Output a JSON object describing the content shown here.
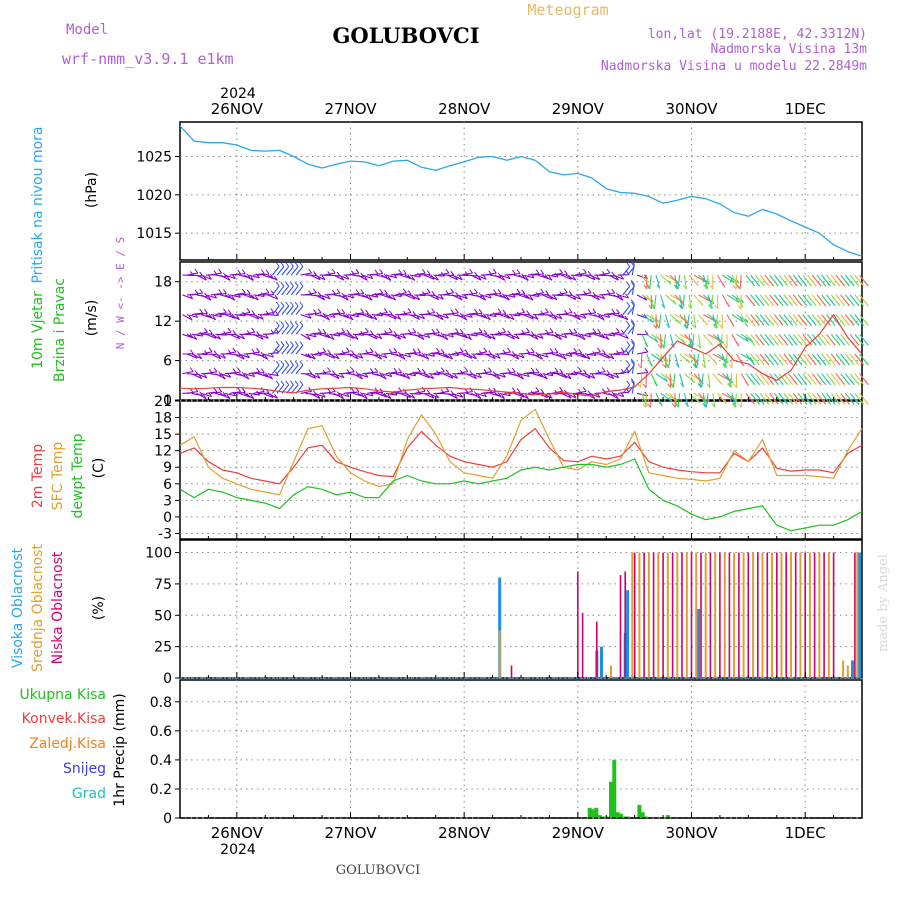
{
  "header": {
    "model_label": "Model",
    "model_name": "wrf-nmm_v3.9.1 e1km",
    "station": "GOLUBOVCI",
    "product": "Meteogram",
    "lonlat": "lon,lat (19.2188E, 42.3312N)",
    "elevation": "Nadmorska Visina 13m",
    "model_elevation": "Nadmorska Visina u modelu 22.2849m",
    "year": "2024",
    "footer_station": "GOLUBOVCI",
    "credit": "made by Angel"
  },
  "colors": {
    "pressure": "#2aa8e8",
    "wind_barb": "#8800cc",
    "temp2m": "#e84040",
    "sfc_temp": "#e0a030",
    "dewpoint": "#20c020",
    "cloud_high": "#1e90e0",
    "cloud_mid": "#e0a030",
    "cloud_low": "#cc0077",
    "precip_total": "#20c020",
    "precip_conv": "#e84040",
    "precip_frozen": "#f08020",
    "precip_snow": "#4040e0",
    "precip_graupel": "#20c0c0"
  },
  "chart_data": [
    {
      "type": "line",
      "panel": "pressure",
      "ylabel": "Pritisak na nivou mora",
      "unit": "(hPa)",
      "yticks": [
        1015,
        1020,
        1025
      ],
      "ylim": [
        1011.5,
        1029.5
      ],
      "x_day_labels": [
        "26NOV",
        "27NOV",
        "28NOV",
        "29NOV",
        "30NOV",
        "1DEC"
      ],
      "x_hours": [
        0,
        3,
        6,
        9,
        12,
        15,
        18,
        21,
        24,
        27,
        30,
        33,
        36,
        39,
        42,
        45,
        48,
        51,
        54,
        57,
        60,
        63,
        66,
        69,
        72,
        75,
        78,
        81,
        84,
        87,
        90,
        93,
        96,
        99,
        102,
        105,
        108,
        111,
        114,
        117,
        120,
        123,
        126,
        129,
        132,
        135,
        138,
        141,
        144
      ],
      "series": [
        {
          "values": [
            1029.0,
            1027.0,
            1026.8,
            1026.8,
            1026.5,
            1025.8,
            1025.7,
            1025.8,
            1025.0,
            1024.0,
            1023.5,
            1024.0,
            1024.4,
            1024.3,
            1023.8,
            1024.4,
            1024.5,
            1023.6,
            1023.2,
            1023.8,
            1024.3,
            1024.9,
            1025.0,
            1024.5,
            1025.0,
            1024.5,
            1023.0,
            1022.6,
            1022.8,
            1022.2,
            1020.8,
            1020.3,
            1020.2,
            1019.8,
            1018.9,
            1019.3,
            1019.8,
            1019.5,
            1018.8,
            1017.7,
            1017.2,
            1018.1,
            1017.5,
            1016.6,
            1015.8,
            1015.0,
            1013.5,
            1012.6,
            1012.0
          ]
        }
      ]
    },
    {
      "type": "line",
      "panel": "wind",
      "ylabel": "10m Vjetar Brzina i Pravac",
      "unit": "(m/s)",
      "compass": "N / W <- -> E / S",
      "yticks": [
        0,
        6,
        12,
        18
      ],
      "ylim": [
        0,
        21
      ],
      "x_hours": [
        0,
        3,
        6,
        9,
        12,
        15,
        18,
        21,
        24,
        27,
        30,
        33,
        36,
        39,
        42,
        45,
        48,
        51,
        54,
        57,
        60,
        63,
        66,
        69,
        72,
        75,
        78,
        81,
        84,
        87,
        90,
        93,
        96,
        99,
        102,
        105,
        108,
        111,
        114,
        117,
        120,
        123,
        126,
        129,
        132,
        135,
        138,
        141,
        144
      ],
      "series": [
        {
          "name": "wind speed",
          "values": [
            1.8,
            1.7,
            1.8,
            1.9,
            1.9,
            1.8,
            1.6,
            1.3,
            1.1,
            1.5,
            1.7,
            1.8,
            1.9,
            1.7,
            1.4,
            1.2,
            1.5,
            1.7,
            1.8,
            1.9,
            1.7,
            1.6,
            1.4,
            1.2,
            1.0,
            0.8,
            0.9,
            1.2,
            0.8,
            0.6,
            1.3,
            1.5,
            2.0,
            4.0,
            6.5,
            9.0,
            8.0,
            7.0,
            8.5,
            6.0,
            5.5,
            4.0,
            3.0,
            4.5,
            8.0,
            10.0,
            13.0,
            9.5,
            7.0
          ]
        }
      ]
    },
    {
      "type": "line",
      "panel": "temperature",
      "ylabels": [
        "2m Temp",
        "SFC Temp",
        "dewpt Temp"
      ],
      "unit": "(C)",
      "yticks": [
        -3,
        0,
        3,
        6,
        9,
        12,
        15,
        18,
        21
      ],
      "ylim": [
        -4,
        21
      ],
      "x_hours": [
        0,
        3,
        6,
        9,
        12,
        15,
        18,
        21,
        24,
        27,
        30,
        33,
        36,
        39,
        42,
        45,
        48,
        51,
        54,
        57,
        60,
        63,
        66,
        69,
        72,
        75,
        78,
        81,
        84,
        87,
        90,
        93,
        96,
        99,
        102,
        105,
        108,
        111,
        114,
        117,
        120,
        123,
        126,
        129,
        132,
        135,
        138,
        141,
        144
      ],
      "series": [
        {
          "name": "2m Temp",
          "values": [
            11.5,
            12.5,
            10.0,
            8.5,
            8.0,
            7.0,
            6.5,
            6.0,
            9.0,
            12.5,
            13.0,
            10.0,
            9.0,
            8.2,
            7.5,
            7.3,
            12.5,
            15.5,
            13.0,
            11.0,
            10.0,
            9.5,
            9.0,
            10.0,
            14.0,
            16.0,
            12.5,
            10.2,
            10.0,
            11.0,
            10.5,
            11.0,
            13.5,
            10.0,
            9.0,
            8.5,
            8.2,
            8.0,
            8.0,
            11.5,
            10.0,
            12.5,
            8.8,
            8.3,
            8.5,
            8.5,
            8.0,
            11.5,
            13.0
          ]
        },
        {
          "name": "SFC Temp",
          "values": [
            13.0,
            14.5,
            9.0,
            7.0,
            6.0,
            5.0,
            4.5,
            4.0,
            10.0,
            16.0,
            16.5,
            11.0,
            8.0,
            6.5,
            5.5,
            6.0,
            14.0,
            18.5,
            15.0,
            10.0,
            8.0,
            7.5,
            7.0,
            11.0,
            17.5,
            19.5,
            14.0,
            9.0,
            8.5,
            10.0,
            9.5,
            10.5,
            15.5,
            8.0,
            7.5,
            7.0,
            6.8,
            6.5,
            7.0,
            12.0,
            10.0,
            14.0,
            7.5,
            7.5,
            7.5,
            7.3,
            7.0,
            12.0,
            16.0
          ]
        },
        {
          "name": "dewpt Temp",
          "values": [
            5.0,
            3.5,
            5.0,
            4.5,
            3.5,
            3.0,
            2.5,
            1.5,
            4.0,
            5.5,
            5.0,
            4.0,
            4.5,
            3.5,
            3.5,
            6.5,
            7.5,
            6.5,
            6.0,
            6.0,
            6.5,
            6.0,
            6.5,
            7.0,
            8.5,
            9.0,
            8.5,
            9.0,
            9.5,
            9.5,
            9.0,
            9.5,
            10.5,
            5.0,
            3.0,
            2.0,
            0.5,
            -0.5,
            0.0,
            1.0,
            1.5,
            2.0,
            -1.5,
            -2.5,
            -2.0,
            -1.5,
            -1.5,
            -0.5,
            1.0
          ]
        }
      ]
    },
    {
      "type": "bar",
      "panel": "clouds",
      "ylabels": [
        "Visoka Oblacnost",
        "Srednja Oblacnost",
        "Niska Oblacnost"
      ],
      "unit": "(%)",
      "yticks": [
        0,
        25,
        50,
        75,
        100
      ],
      "ylim": [
        0,
        110
      ],
      "series": [
        {
          "name": "Visoka Oblacnost",
          "x": [
            67.5,
            88.0,
            89.0,
            94.0,
            94.5,
            109.5,
            142.0,
            143.5
          ],
          "values": [
            80,
            22,
            25,
            36,
            70,
            55,
            14,
            100
          ]
        },
        {
          "name": "Srednja Oblacnost",
          "x": [
            67.5,
            91.0,
            95.5,
            97.0,
            99.0,
            101.0,
            103.0,
            105.0,
            107.0,
            109.0,
            111.0,
            113.0,
            115.0,
            117.0,
            119.0,
            121.0,
            123.0,
            125.0,
            127.0,
            129.0,
            131.0,
            133.0,
            135.0,
            137.0,
            140.0,
            141.0,
            143.0
          ],
          "values": [
            38,
            10,
            100,
            100,
            100,
            100,
            100,
            100,
            100,
            100,
            100,
            100,
            100,
            100,
            100,
            100,
            100,
            100,
            100,
            100,
            100,
            100,
            100,
            100,
            14,
            10,
            100
          ]
        },
        {
          "name": "Niska Oblacnost",
          "x": [
            70.0,
            84.0,
            85.0,
            88.0,
            93.0,
            94.0,
            96.0,
            98.0,
            100.0,
            102.0,
            104.0,
            106.0,
            108.0,
            110.0,
            112.0,
            114.0,
            116.0,
            118.0,
            120.0,
            122.0,
            124.0,
            126.0,
            128.0,
            130.0,
            132.0,
            134.0,
            136.0,
            138.0,
            142.5
          ],
          "values": [
            10,
            85,
            52,
            45,
            82,
            85,
            100,
            100,
            100,
            100,
            100,
            100,
            100,
            100,
            100,
            100,
            100,
            100,
            100,
            100,
            100,
            100,
            100,
            100,
            100,
            100,
            100,
            100,
            100
          ]
        }
      ]
    },
    {
      "type": "bar",
      "panel": "precipitation",
      "ylabels": [
        "Ukupna Kisa",
        "Konvek.Kisa",
        "Zaledj.Kisa",
        "Snijeg",
        "Grad"
      ],
      "unit": "1hr Precip (mm)",
      "yticks": [
        0,
        0.2,
        0.4,
        0.6,
        0.8
      ],
      "ylim": [
        0,
        0.95
      ],
      "series": [
        {
          "name": "Ukupna Kisa",
          "x": [
            86.5,
            87.2,
            87.9,
            88.6,
            89.3,
            90.0,
            91.0,
            91.7,
            92.4,
            93.1,
            93.8,
            94.5,
            97.0,
            97.7,
            98.4,
            103.0
          ],
          "values": [
            0.07,
            0.06,
            0.07,
            0.02,
            0.01,
            0.01,
            0.25,
            0.4,
            0.04,
            0.03,
            0.01,
            0.01,
            0.09,
            0.04,
            0.01,
            0.02
          ]
        }
      ]
    }
  ]
}
